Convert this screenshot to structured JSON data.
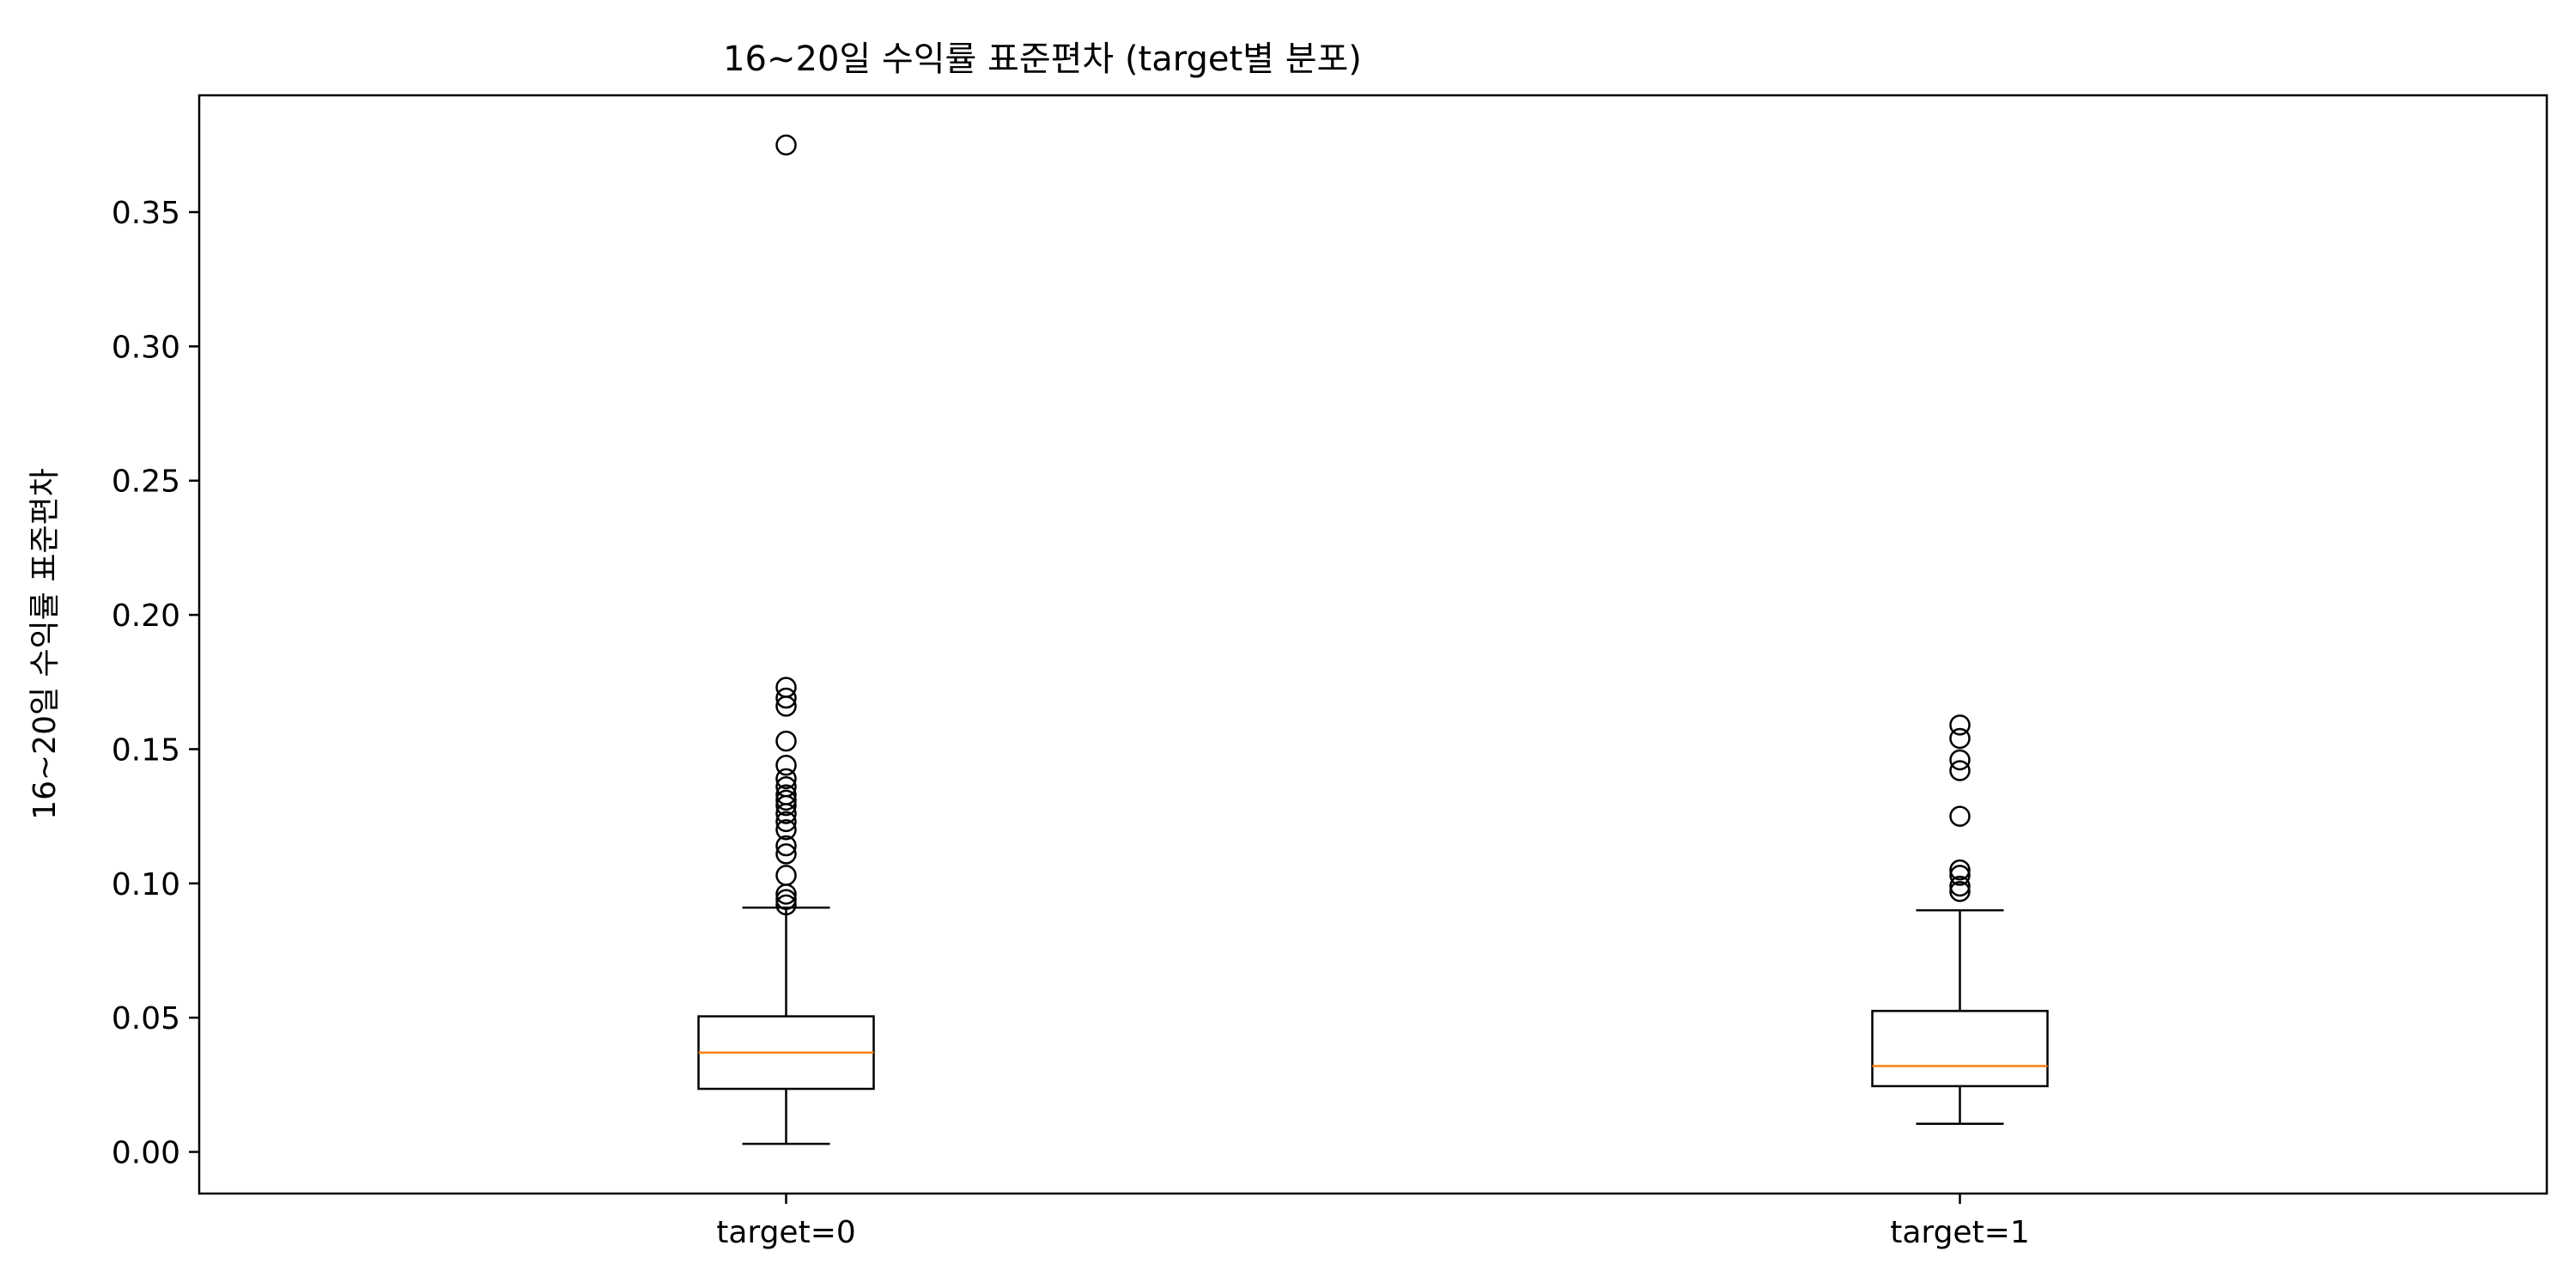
{
  "chart_data": {
    "type": "boxplot",
    "title": "16~20일 수익률 표준편차 (target별 분포)",
    "xlabel": "",
    "ylabel": "16~20일 수익률 표준편차",
    "categories": [
      "target=0",
      "target=1"
    ],
    "ylim": [
      -0.0155,
      0.3935
    ],
    "yticks": [
      0.0,
      0.05,
      0.1,
      0.15,
      0.2,
      0.25,
      0.3,
      0.35
    ],
    "ytick_labels": [
      "0.00",
      "0.05",
      "0.10",
      "0.15",
      "0.20",
      "0.25",
      "0.30",
      "0.35"
    ],
    "grid": false,
    "median_color": "#ff7f0e",
    "box_color": "#000000",
    "boxes": [
      {
        "category": "target=0",
        "whisker_low": 0.003,
        "q1": 0.0235,
        "median": 0.037,
        "q3": 0.0505,
        "whisker_high": 0.091,
        "outliers": [
          0.375,
          0.173,
          0.169,
          0.166,
          0.153,
          0.144,
          0.139,
          0.136,
          0.133,
          0.131,
          0.129,
          0.126,
          0.123,
          0.12,
          0.114,
          0.111,
          0.103,
          0.096,
          0.094,
          0.092
        ]
      },
      {
        "category": "target=1",
        "whisker_low": 0.0105,
        "q1": 0.0245,
        "median": 0.032,
        "q3": 0.0525,
        "whisker_high": 0.09,
        "outliers": [
          0.159,
          0.154,
          0.146,
          0.142,
          0.125,
          0.105,
          0.103,
          0.099,
          0.097
        ]
      }
    ]
  }
}
